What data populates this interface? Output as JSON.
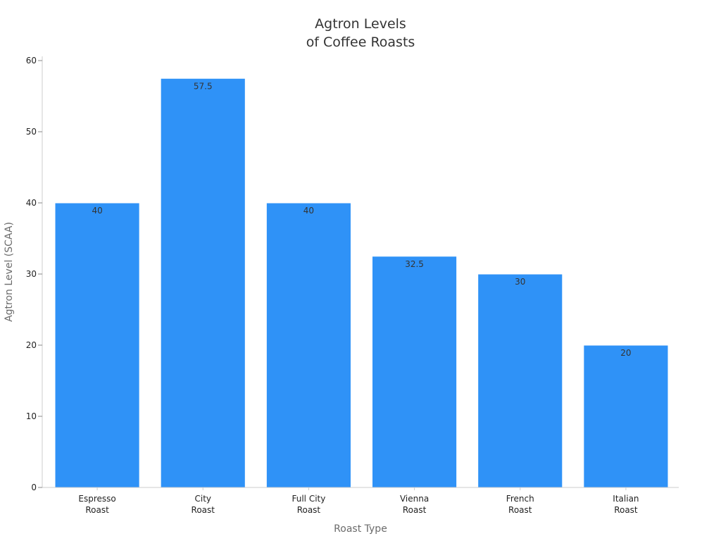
{
  "chart_data": {
    "type": "bar",
    "title_lines": [
      "Agtron Levels",
      "of Coffee Roasts"
    ],
    "categories": [
      [
        "Espresso",
        "Roast"
      ],
      [
        "City",
        "Roast"
      ],
      [
        "Full City",
        "Roast"
      ],
      [
        "Vienna",
        "Roast"
      ],
      [
        "French",
        "Roast"
      ],
      [
        "Italian",
        "Roast"
      ]
    ],
    "values": [
      40,
      57.5,
      40,
      32.5,
      30,
      20
    ],
    "data_labels": [
      "40",
      "57.5",
      "40",
      "32.5",
      "30",
      "20"
    ],
    "xlabel": "Roast Type",
    "ylabel": "Agtron Level (SCAA)",
    "ylim": [
      0,
      60
    ],
    "yticks": [
      0,
      10,
      20,
      30,
      40,
      50,
      60
    ],
    "grid": false,
    "bar_color": "#2f92f7",
    "axis_color": "#cccccc"
  }
}
